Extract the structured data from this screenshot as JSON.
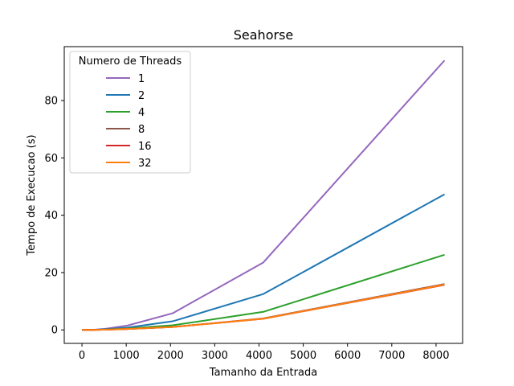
{
  "chart_data": {
    "type": "line",
    "title": "Seahorse",
    "xlabel": "Tamanho da Entrada",
    "ylabel": "Tempo de Execucao (s)",
    "xlim": [
      -400,
      8600
    ],
    "ylim": [
      -4.7,
      98.8
    ],
    "xticks": [
      0,
      1000,
      2000,
      3000,
      4000,
      5000,
      6000,
      7000,
      8000
    ],
    "yticks": [
      0,
      20,
      40,
      60,
      80
    ],
    "grid": false,
    "legend": {
      "title": "Numero de Threads",
      "placement": "top-left"
    },
    "x": [
      1,
      32,
      64,
      128,
      256,
      512,
      1024,
      2048,
      4096,
      8192
    ],
    "series": [
      {
        "name": "1",
        "color": "#9467bd",
        "values": [
          0.0,
          0.0,
          0.0,
          0.0,
          0.05,
          0.35,
          1.5,
          5.8,
          23.5,
          94.0
        ]
      },
      {
        "name": "2",
        "color": "#1f77b4",
        "values": [
          0.0,
          0.0,
          0.0,
          0.0,
          0.03,
          0.2,
          0.8,
          3.0,
          12.5,
          47.3
        ]
      },
      {
        "name": "4",
        "color": "#2ca02c",
        "values": [
          0.0,
          0.0,
          0.0,
          0.0,
          0.02,
          0.12,
          0.5,
          1.6,
          6.3,
          26.2
        ]
      },
      {
        "name": "8",
        "color": "#8c564b",
        "values": [
          0.0,
          0.0,
          0.0,
          0.0,
          0.01,
          0.08,
          0.3,
          1.0,
          4.0,
          16.0
        ]
      },
      {
        "name": "16",
        "color": "#d62728",
        "values": [
          0.0,
          0.0,
          0.0,
          0.0,
          0.01,
          0.08,
          0.3,
          1.0,
          3.9,
          15.7
        ]
      },
      {
        "name": "32",
        "color": "#ff7f0e",
        "values": [
          0.0,
          0.0,
          0.0,
          0.0,
          0.01,
          0.08,
          0.3,
          1.0,
          3.9,
          15.8
        ]
      }
    ]
  }
}
